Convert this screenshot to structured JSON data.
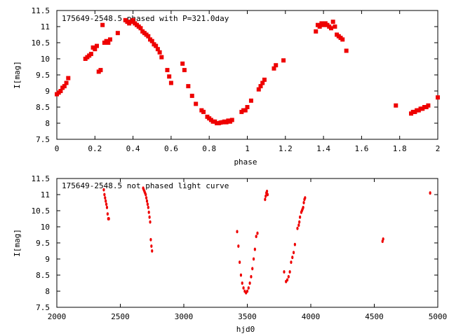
{
  "chart_data": [
    {
      "type": "scatter",
      "title": "175649-2548.5 phased with P=321.0day",
      "xlabel": "phase",
      "ylabel": "I[mag]",
      "xlim": [
        0,
        2
      ],
      "ylim": [
        11.5,
        7.5
      ],
      "y_inverted": true,
      "grid": false,
      "x_ticks": [
        0,
        0.2,
        0.4,
        0.6,
        0.8,
        1,
        1.2,
        1.4,
        1.6,
        1.8,
        2
      ],
      "y_ticks": [
        7.5,
        8,
        8.5,
        9,
        9.5,
        10,
        10.5,
        11,
        11.5
      ],
      "marker": "filled-square",
      "color": "#ee0000",
      "series": [
        {
          "x": [
            0.0,
            0.01,
            0.02,
            0.03,
            0.04,
            0.05,
            0.06,
            0.15,
            0.16,
            0.17,
            0.18,
            0.19,
            0.2,
            0.21,
            0.22,
            0.23,
            0.24,
            0.25,
            0.26,
            0.27,
            0.28,
            0.32,
            0.36,
            0.37,
            0.38,
            0.39,
            0.4,
            0.41,
            0.42,
            0.43,
            0.44,
            0.45,
            0.46,
            0.47,
            0.48,
            0.49,
            0.5,
            0.51,
            0.52,
            0.53,
            0.54,
            0.55,
            0.58,
            0.59,
            0.6,
            0.66,
            0.67,
            0.69,
            0.71,
            0.73,
            0.76,
            0.77,
            0.79,
            0.8,
            0.81,
            0.82,
            0.83,
            0.84,
            0.85,
            0.86,
            0.87,
            0.88,
            0.89,
            0.9,
            0.91,
            0.92,
            0.97,
            0.98,
            0.99,
            1.0,
            1.02,
            1.06,
            1.07,
            1.08,
            1.09,
            1.14,
            1.15,
            1.19,
            1.36,
            1.37,
            1.38,
            1.39,
            1.4,
            1.41,
            1.42,
            1.43,
            1.44,
            1.45,
            1.46,
            1.47,
            1.48,
            1.49,
            1.5,
            1.52,
            1.78,
            1.86,
            1.87,
            1.88,
            1.89,
            1.9,
            1.91,
            1.92,
            1.93,
            1.94,
            1.95,
            2.0
          ],
          "y": [
            8.9,
            8.95,
            9.0,
            9.1,
            9.15,
            9.25,
            9.4,
            10.0,
            10.05,
            10.1,
            10.15,
            10.35,
            10.3,
            10.4,
            9.6,
            9.65,
            11.05,
            10.5,
            10.55,
            10.5,
            10.6,
            10.8,
            11.2,
            11.15,
            11.1,
            11.15,
            11.2,
            11.1,
            11.05,
            11.0,
            10.95,
            10.85,
            10.8,
            10.75,
            10.7,
            10.6,
            10.55,
            10.45,
            10.4,
            10.3,
            10.2,
            10.05,
            9.65,
            9.45,
            9.25,
            9.85,
            9.65,
            9.15,
            8.85,
            8.6,
            8.4,
            8.35,
            8.2,
            8.15,
            8.1,
            8.05,
            8.05,
            8.0,
            8.0,
            8.02,
            8.03,
            8.05,
            8.03,
            8.08,
            8.05,
            8.1,
            8.35,
            8.4,
            8.4,
            8.5,
            8.7,
            9.05,
            9.15,
            9.25,
            9.35,
            9.7,
            9.8,
            9.95,
            10.85,
            11.05,
            11.0,
            11.1,
            11.05,
            11.1,
            11.05,
            11.0,
            10.95,
            11.15,
            11.0,
            10.75,
            10.7,
            10.65,
            10.6,
            10.25,
            8.55,
            8.3,
            8.35,
            8.35,
            8.4,
            8.4,
            8.45,
            8.45,
            8.5,
            8.5,
            8.55,
            8.8
          ]
        }
      ]
    },
    {
      "type": "scatter",
      "title": "175649-2548.5 not phased light curve",
      "xlabel": "hjd0",
      "ylabel": "I[mag]",
      "xlim": [
        2000,
        5000
      ],
      "ylim": [
        11.5,
        7.5
      ],
      "y_inverted": true,
      "grid": false,
      "x_ticks": [
        2000,
        2500,
        3000,
        3500,
        4000,
        4500,
        5000
      ],
      "y_ticks": [
        7.5,
        8,
        8.5,
        9,
        9.5,
        10,
        10.5,
        11,
        11.5
      ],
      "marker": "dot",
      "color": "#ee0000",
      "series": [
        {
          "x": [
            2370,
            2375,
            2380,
            2385,
            2390,
            2395,
            2400,
            2405,
            2410,
            2680,
            2685,
            2690,
            2695,
            2700,
            2705,
            2710,
            2715,
            2720,
            2725,
            2730,
            2735,
            2740,
            2745,
            2750,
            3420,
            3430,
            3440,
            3450,
            3460,
            3470,
            3480,
            3490,
            3500,
            3510,
            3520,
            3530,
            3540,
            3550,
            3560,
            3570,
            3580,
            3640,
            3645,
            3650,
            3655,
            3660,
            3790,
            3805,
            3815,
            3825,
            3835,
            3845,
            3855,
            3865,
            3875,
            3895,
            3905,
            3910,
            3915,
            3925,
            3930,
            3935,
            3940,
            3945,
            3950,
            3955,
            4565,
            4570,
            4940
          ],
          "y": [
            11.15,
            11.0,
            10.9,
            10.8,
            10.7,
            10.6,
            10.4,
            10.25,
            10.25,
            11.2,
            11.15,
            11.1,
            11.05,
            11.0,
            10.9,
            10.8,
            10.7,
            10.6,
            10.45,
            10.3,
            10.15,
            9.6,
            9.4,
            9.25,
            9.85,
            9.4,
            8.9,
            8.5,
            8.25,
            8.1,
            8.0,
            7.95,
            8.0,
            8.1,
            8.25,
            8.45,
            8.7,
            9.0,
            9.3,
            9.7,
            9.8,
            10.85,
            10.95,
            11.05,
            11.1,
            11.0,
            8.6,
            8.3,
            8.35,
            8.45,
            8.6,
            8.9,
            9.05,
            9.2,
            9.45,
            9.95,
            10.05,
            10.15,
            10.3,
            10.45,
            10.5,
            10.55,
            10.6,
            10.75,
            10.85,
            10.9,
            9.55,
            9.62,
            11.05
          ]
        }
      ]
    }
  ]
}
